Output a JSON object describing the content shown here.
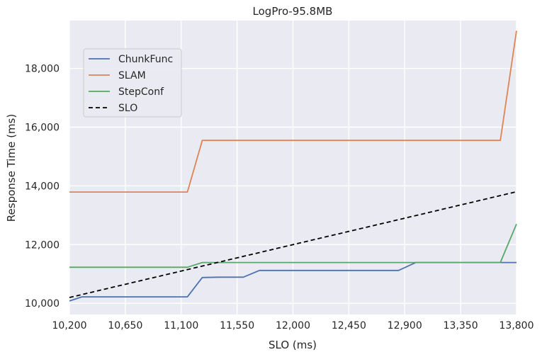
{
  "chart_data": {
    "type": "line",
    "title": "LogPro-95.8MB",
    "xlabel": "SLO (ms)",
    "ylabel": "Response Time (ms)",
    "xlim": [
      10200,
      13800
    ],
    "ylim": [
      9620,
      19630
    ],
    "x_ticks": [
      10200,
      10650,
      11100,
      11550,
      12000,
      12450,
      12900,
      13350,
      13800
    ],
    "x_tick_labels": [
      "10,200",
      "10,650",
      "11,100",
      "11,550",
      "12,000",
      "12,450",
      "12,900",
      "13,350",
      "13,800"
    ],
    "y_ticks": [
      10000,
      12000,
      14000,
      16000,
      18000
    ],
    "y_tick_labels": [
      "10,000",
      "12,000",
      "14,000",
      "16,000",
      "18,000"
    ],
    "grid": true,
    "legend_position": "upper-left",
    "series": [
      {
        "name": "ChunkFunc",
        "color": "#4c72b0",
        "dash": "solid",
        "x": [
          10200,
          10300,
          11150,
          11270,
          11400,
          11600,
          11730,
          12850,
          12990,
          13800
        ],
        "y": [
          10080,
          10220,
          10220,
          10880,
          10890,
          10890,
          11120,
          11120,
          11390,
          11390
        ]
      },
      {
        "name": "SLAM",
        "color": "#dd8452",
        "dash": "solid",
        "x": [
          10200,
          11150,
          11270,
          13670,
          13800
        ],
        "y": [
          13790,
          13790,
          15550,
          15550,
          19280
        ]
      },
      {
        "name": "StepConf",
        "color": "#55a868",
        "dash": "solid",
        "x": [
          10200,
          11150,
          11270,
          13670,
          13800
        ],
        "y": [
          11230,
          11230,
          11390,
          11390,
          12700
        ]
      },
      {
        "name": "SLO",
        "color": "#000000",
        "dash": "dashed",
        "x": [
          10200,
          13800
        ],
        "y": [
          10200,
          13800
        ]
      }
    ]
  }
}
